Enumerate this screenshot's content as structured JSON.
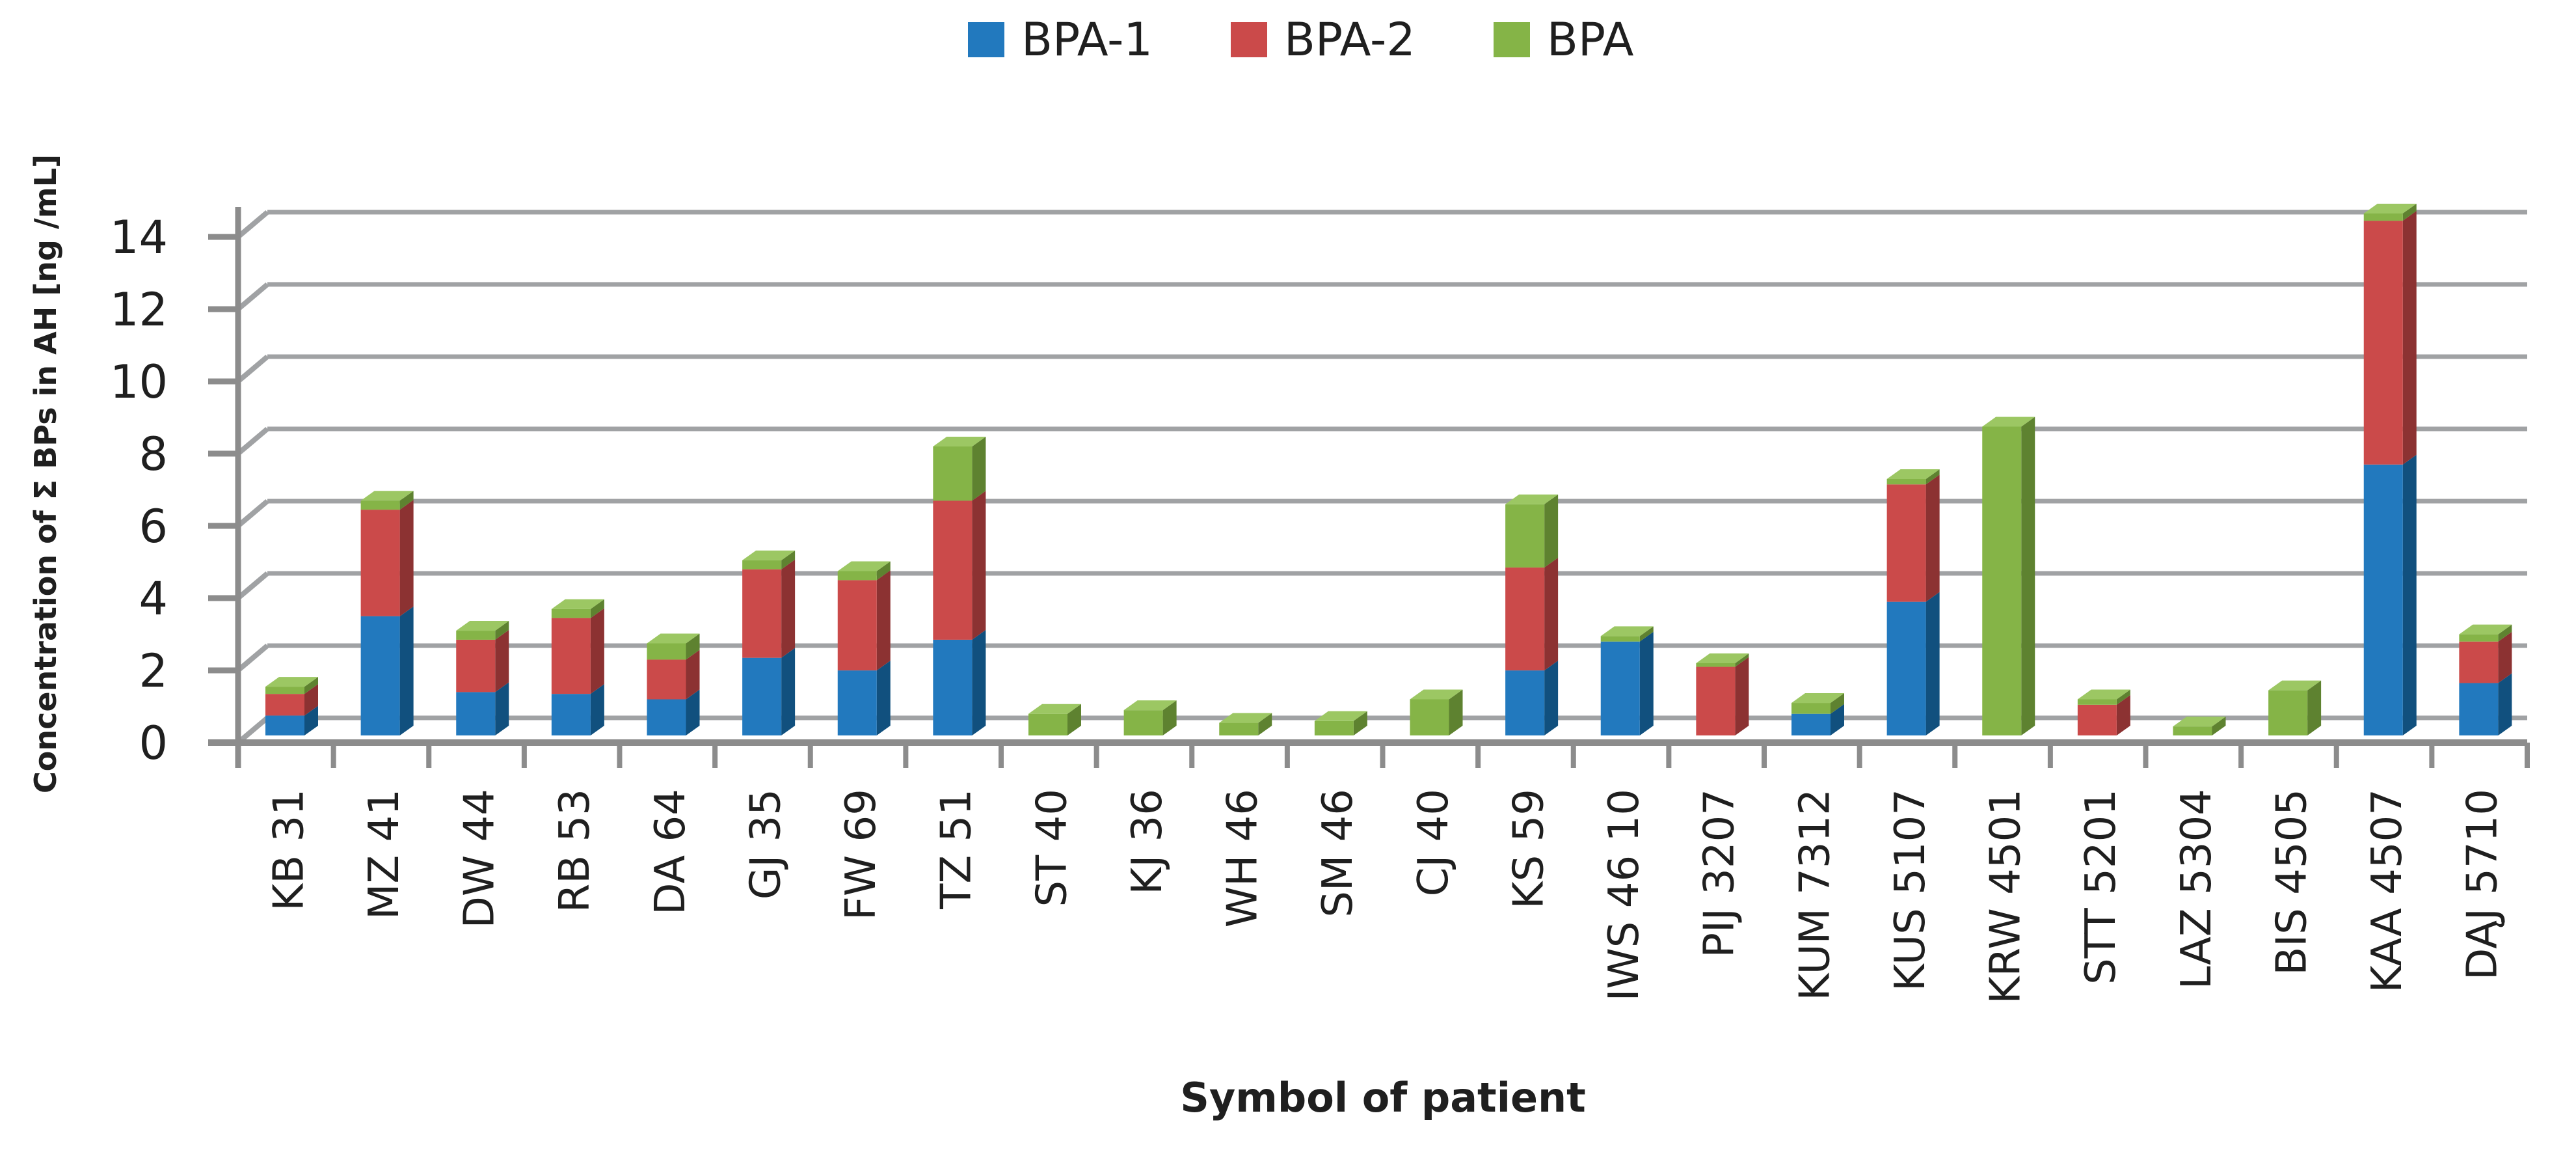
{
  "legend": {
    "items": [
      {
        "label": "BPA-1",
        "color": "#2279BE"
      },
      {
        "label": "BPA-2",
        "color": "#CB4A4A"
      },
      {
        "label": "BPA",
        "color": "#85B447"
      }
    ]
  },
  "chart_data": {
    "type": "bar",
    "stacked": true,
    "style": "3d-column",
    "title": "",
    "xlabel": "Symbol of patient",
    "ylabel": "Concentration of Σ BPs in AH [ng /mL]",
    "ylim": [
      0,
      14
    ],
    "yticks": [
      0,
      2,
      4,
      6,
      8,
      10,
      12,
      14
    ],
    "grid": true,
    "legend_position": "top-center",
    "categories": [
      "KB 31",
      "MZ 41",
      "DW 44",
      "RB 53",
      "DA 64",
      "GJ 35",
      "FW 69",
      "TZ 51",
      "ST 40",
      "KJ 36",
      "WH 46",
      "SM 46",
      "CJ 40",
      "KS 59",
      "IWS 46 10",
      "PIJ 3207",
      "KUM 7312",
      "KUS 5107",
      "KRW 4501",
      "STT 5201",
      "LAZ 5304",
      "BIS 4505",
      "KAA 4507",
      "DĄJ 5710"
    ],
    "series": [
      {
        "name": "BPA-1",
        "color": "#2279BE",
        "side_color": "#11507E",
        "top_color": "#4C9BD6",
        "values": [
          0.55,
          3.3,
          1.2,
          1.15,
          1.0,
          2.15,
          1.8,
          2.65,
          0,
          0,
          0,
          0,
          0,
          1.8,
          2.6,
          0,
          0.6,
          3.7,
          0,
          0,
          0,
          0,
          7.5,
          1.45
        ]
      },
      {
        "name": "BPA-2",
        "color": "#CB4A4A",
        "side_color": "#8C3232",
        "top_color": "#DA6A6A",
        "values": [
          0.6,
          2.95,
          1.45,
          2.1,
          1.1,
          2.45,
          2.5,
          3.85,
          0,
          0,
          0,
          0,
          0,
          2.85,
          0,
          1.9,
          0,
          3.25,
          0,
          0.85,
          0,
          0,
          6.75,
          1.15
        ]
      },
      {
        "name": "BPA",
        "color": "#85B447",
        "side_color": "#5E8230",
        "top_color": "#9CC763",
        "values": [
          0.2,
          0.25,
          0.25,
          0.25,
          0.45,
          0.25,
          0.25,
          1.5,
          0.6,
          0.7,
          0.35,
          0.4,
          1.0,
          1.75,
          0.15,
          0.1,
          0.3,
          0.15,
          8.55,
          0.15,
          0.25,
          1.25,
          0.2,
          0.2
        ]
      }
    ],
    "axis_color": "#8C8C8C",
    "gridline_color": "#A0A2A4",
    "text_color": "#1F1F1F"
  }
}
